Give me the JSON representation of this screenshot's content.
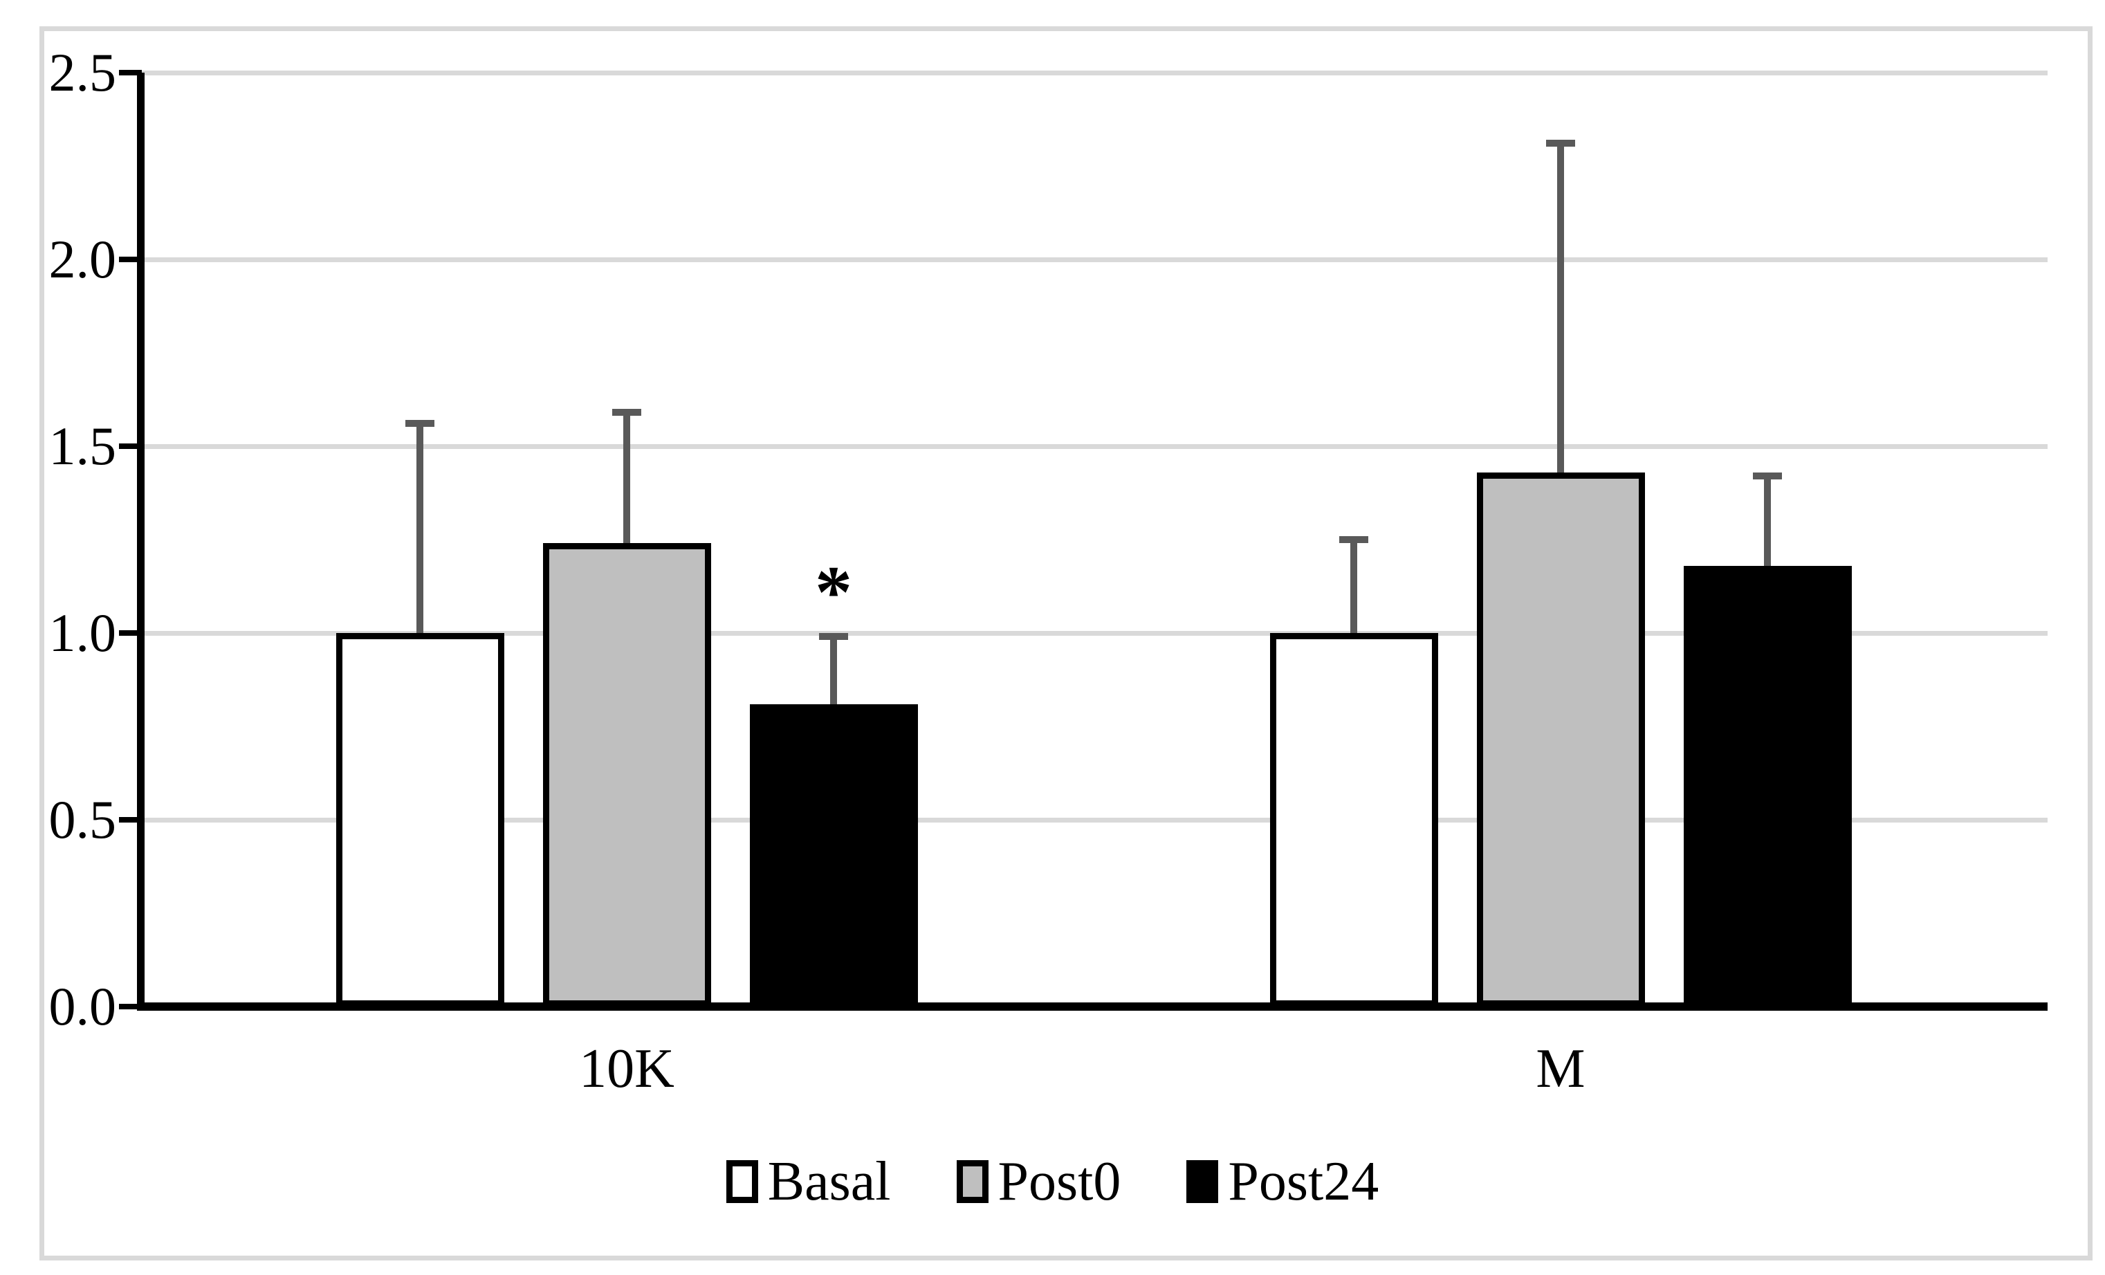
{
  "figure": {
    "background_color": "#ffffff",
    "frame_border_color": "#d9d9d9"
  },
  "chart_data": {
    "type": "bar",
    "title": "",
    "xlabel": "",
    "ylabel": "",
    "categories": [
      "10K",
      "M"
    ],
    "series": [
      {
        "name": "Basal",
        "fill": "#ffffff",
        "values": [
          1.0,
          1.0
        ],
        "errors_up": [
          0.57,
          0.26
        ]
      },
      {
        "name": "Post0",
        "fill": "#bfbfbf",
        "values": [
          1.24,
          1.43
        ],
        "errors_up": [
          0.36,
          0.89
        ]
      },
      {
        "name": "Post24",
        "fill": "#000000",
        "values": [
          0.81,
          1.18
        ],
        "errors_up": [
          0.19,
          0.25
        ]
      }
    ],
    "annotations": [
      {
        "text": "*",
        "category": "10K",
        "series": "Post24"
      }
    ],
    "ylim": [
      0,
      2.5
    ],
    "yticks": [
      0.0,
      0.5,
      1.0,
      1.5,
      2.0,
      2.5
    ],
    "ytick_labels": [
      "0.0",
      "0.5",
      "1.0",
      "1.5",
      "2.0",
      "2.5"
    ],
    "grid": true,
    "gridline_color": "#d9d9d9",
    "axis_color": "#000000",
    "bar_border_color": "#000000",
    "error_bar_color": "#595959",
    "legend": {
      "position": "bottom",
      "items": [
        "Basal",
        "Post0",
        "Post24"
      ]
    }
  }
}
